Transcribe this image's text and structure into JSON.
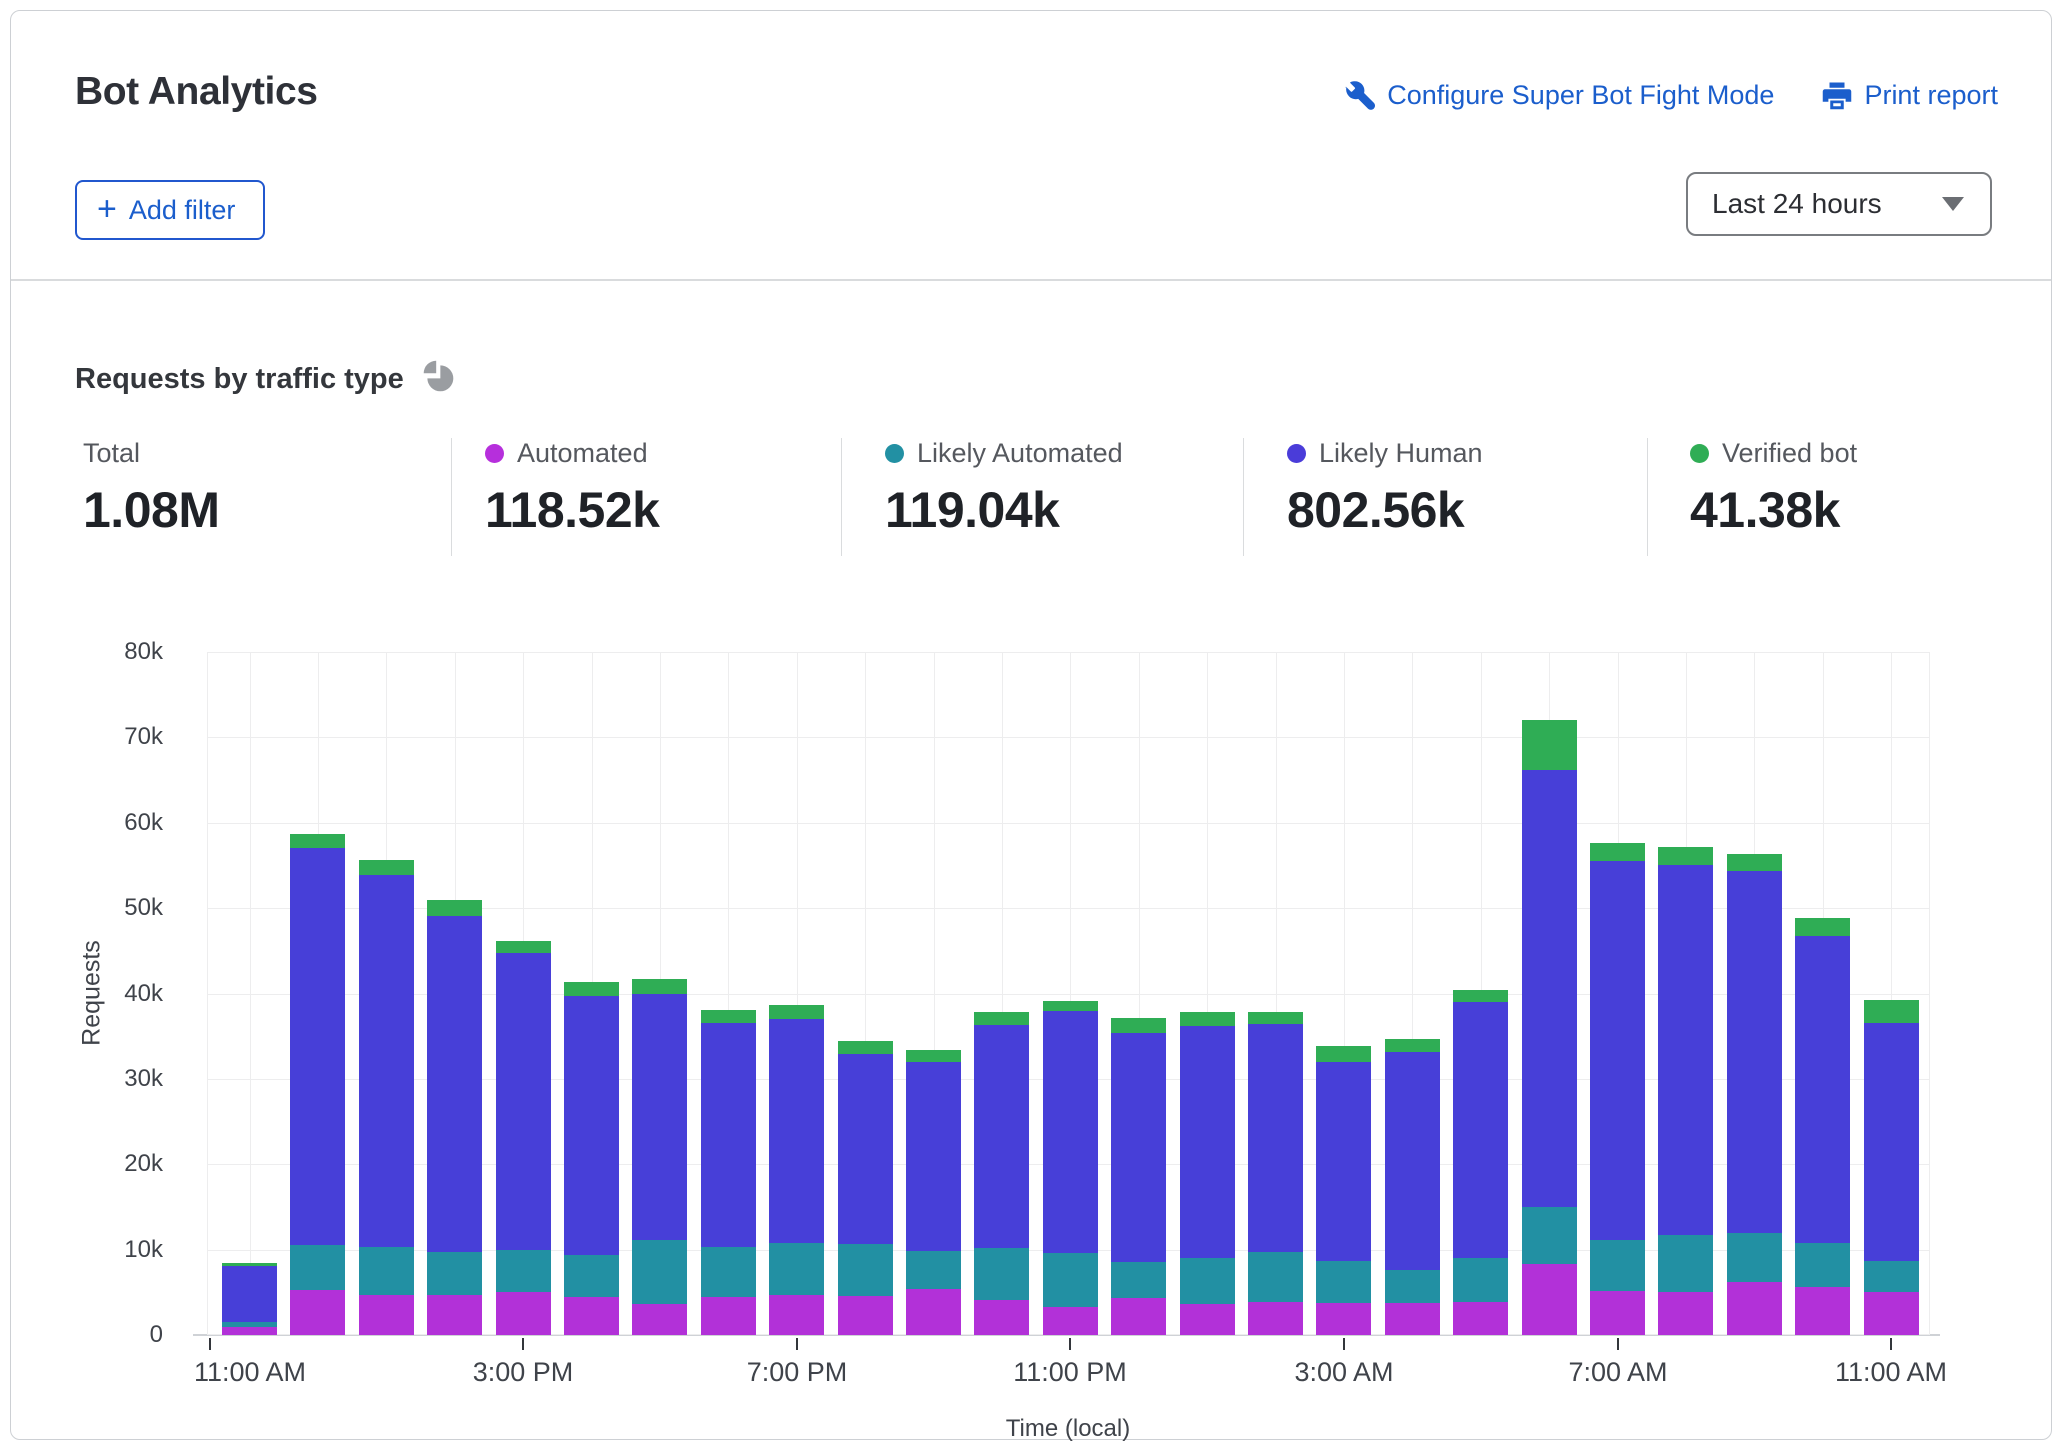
{
  "header": {
    "title": "Bot Analytics",
    "links": [
      {
        "label": "Configure Super Bot Fight Mode",
        "icon": "wrench-icon"
      },
      {
        "label": "Print report",
        "icon": "printer-icon"
      }
    ],
    "add_filter_label": "Add filter",
    "add_filter_plus": "+",
    "time_range": "Last 24 hours"
  },
  "section": {
    "heading": "Requests by traffic type",
    "icon": "pie-chart-icon"
  },
  "stats": [
    {
      "label": "Total",
      "value": "1.08M",
      "dot_color": null
    },
    {
      "label": "Automated",
      "value": "118.52k",
      "dot_color": "#b62fdc"
    },
    {
      "label": "Likely Automated",
      "value": "119.04k",
      "dot_color": "#2290a3"
    },
    {
      "label": "Likely Human",
      "value": "802.56k",
      "dot_color": "#4a3cd9"
    },
    {
      "label": "Verified bot",
      "value": "41.38k",
      "dot_color": "#2fad55"
    }
  ],
  "colors": {
    "link_blue": "#1b5ecc",
    "automated": "#b231d8",
    "likely_automated": "#2290a3",
    "likely_human": "#473fd8",
    "verified_bot": "#2fad55"
  },
  "chart_data": {
    "type": "bar",
    "subtype": "stacked",
    "title": "Requests by traffic type",
    "xlabel": "Time (local)",
    "ylabel": "Requests",
    "ylim": [
      0,
      80000
    ],
    "y_tick_labels": [
      "0",
      "10k",
      "20k",
      "30k",
      "40k",
      "50k",
      "60k",
      "70k",
      "80k"
    ],
    "x_tick_labels": [
      "11:00 AM",
      "3:00 PM",
      "7:00 PM",
      "11:00 PM",
      "3:00 AM",
      "7:00 AM",
      "11:00 AM"
    ],
    "x_tick_indices": [
      0,
      4,
      8,
      12,
      16,
      20,
      24
    ],
    "grid": true,
    "legend_position": "top",
    "units": "thousands of requests",
    "series": [
      {
        "name": "Automated",
        "color": "#b231d8",
        "values_k": [
          0.9,
          5.3,
          4.7,
          4.7,
          5.0,
          4.4,
          3.6,
          4.4,
          4.7,
          4.6,
          5.4,
          4.1,
          3.3,
          4.3,
          3.6,
          3.9,
          3.7,
          3.7,
          3.9,
          8.3,
          5.2,
          5.0,
          6.2,
          5.6,
          5.0
        ]
      },
      {
        "name": "Likely Automated",
        "color": "#2290a3",
        "values_k": [
          0.6,
          5.3,
          5.6,
          5.0,
          5.0,
          5.0,
          7.5,
          5.9,
          6.1,
          6.1,
          4.4,
          6.1,
          6.3,
          4.2,
          5.4,
          5.8,
          5.0,
          3.9,
          5.1,
          6.7,
          5.9,
          6.7,
          5.7,
          5.2,
          3.7
        ]
      },
      {
        "name": "Likely Human",
        "color": "#473fd8",
        "values_k": [
          6.6,
          46.5,
          43.6,
          39.4,
          34.8,
          30.3,
          28.9,
          26.3,
          26.2,
          22.2,
          22.2,
          26.1,
          28.3,
          26.9,
          27.2,
          26.7,
          23.3,
          25.6,
          30.0,
          51.2,
          44.4,
          43.3,
          42.4,
          35.9,
          27.9
        ]
      },
      {
        "name": "Verified bot",
        "color": "#2fad55",
        "values_k": [
          0.3,
          1.6,
          1.7,
          1.8,
          1.4,
          1.6,
          1.7,
          1.5,
          1.7,
          1.5,
          1.4,
          1.5,
          1.2,
          1.7,
          1.6,
          1.4,
          1.9,
          1.5,
          1.4,
          5.8,
          2.1,
          2.2,
          2.1,
          2.1,
          2.6
        ]
      }
    ]
  }
}
